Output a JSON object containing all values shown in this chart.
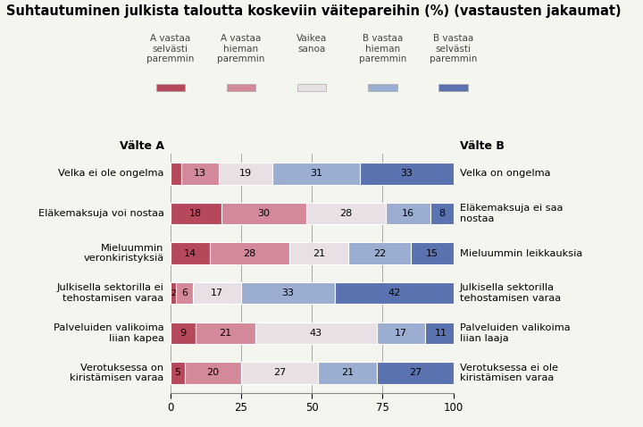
{
  "title": "Suhtautuminen julkista taloutta koskeviin väitepareihin (%) (vastausten jakaumat)",
  "categories_A": [
    "Velka ei ole ongelma",
    "Eläkemaksuja voi nostaa",
    "Mieluummin\nveronkiristyksiä",
    "Julkisella sektorilla ei\ntehostamisen varaa",
    "Palveluiden valikoima\nliian kapea",
    "Verotuksessa on\nkiristämisen varaa"
  ],
  "categories_B": [
    "Velka on ongelma",
    "Eläkemaksuja ei saa\nnostaa",
    "Mieluummin leikkauksia",
    "Julkisella sektorilla\ntehostamisen varaa",
    "Palveluiden valikoima\nliian laaja",
    "Verotuksessa ei ole\nkiristämisen varaa"
  ],
  "data": [
    [
      4,
      13,
      19,
      31,
      33
    ],
    [
      18,
      30,
      28,
      16,
      8
    ],
    [
      14,
      28,
      21,
      22,
      15
    ],
    [
      2,
      6,
      17,
      33,
      42
    ],
    [
      9,
      21,
      43,
      17,
      11
    ],
    [
      5,
      20,
      27,
      21,
      27
    ]
  ],
  "colors": [
    "#b5485a",
    "#d4899a",
    "#e8e0e4",
    "#9badd0",
    "#5b72b0"
  ],
  "legend_labels": [
    "A vastaa\nselvästi\nparemmin",
    "A vastaa\nhieman\nparemmin",
    "Vaikea\nsanoa",
    "B vastaa\nhieman\nparemmin",
    "B vastaa\nselvästi\nparemmin"
  ],
  "xlim": [
    0,
    100
  ],
  "xticks": [
    0,
    25,
    50,
    75,
    100
  ],
  "valite_a_label": "Välte A",
  "valite_b_label": "Välte B",
  "background_color": "#f5f5f0",
  "bar_height": 0.55
}
